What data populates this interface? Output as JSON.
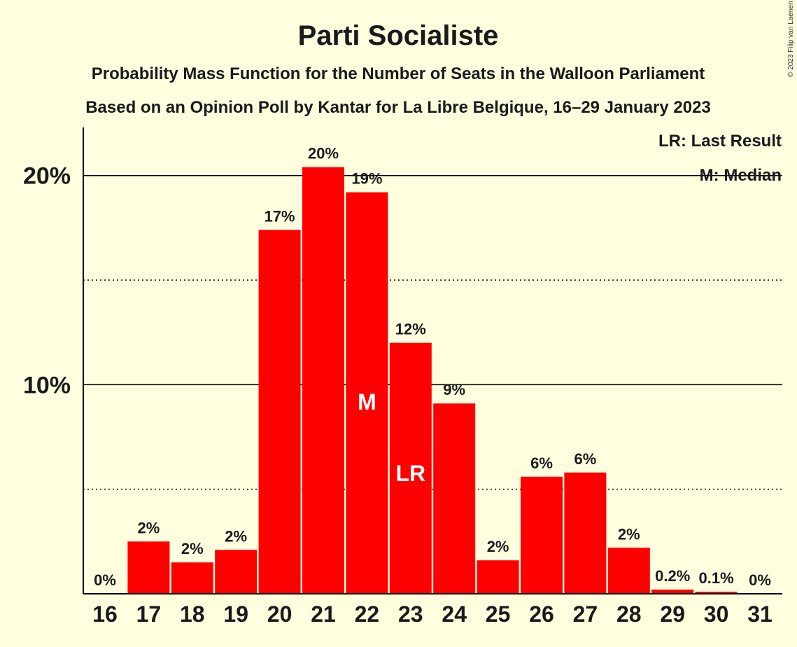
{
  "chart_data": {
    "type": "bar",
    "title": "Parti Socialiste",
    "subtitle_1": "Probability Mass Function for the Number of Seats in the Walloon Parliament",
    "subtitle_2": "Based on an Opinion Poll by Kantar for La Libre Belgique, 16–29 January 2023",
    "categories": [
      "16",
      "17",
      "18",
      "19",
      "20",
      "21",
      "22",
      "23",
      "24",
      "25",
      "26",
      "27",
      "28",
      "29",
      "30",
      "31"
    ],
    "values": [
      0,
      2.5,
      1.5,
      2.1,
      17.4,
      20.4,
      19.2,
      12.0,
      9.1,
      1.6,
      5.6,
      5.8,
      2.2,
      0.2,
      0.1,
      0
    ],
    "data_labels": [
      "0%",
      "2%",
      "2%",
      "2%",
      "17%",
      "20%",
      "19%",
      "12%",
      "9%",
      "2%",
      "6%",
      "6%",
      "2%",
      "0.2%",
      "0.1%",
      "0%"
    ],
    "ylim": [
      0,
      22.3
    ],
    "yticks": [
      {
        "value": 10,
        "label": "10%"
      },
      {
        "value": 20,
        "label": "20%"
      }
    ],
    "minor_gridlines": [
      5,
      15
    ],
    "median_seat": "22",
    "median_marker": "M",
    "last_result_seat": "23",
    "last_result_marker": "LR",
    "legend": [
      "LR: Last Result",
      "M: Median"
    ],
    "legend_position": "top-right",
    "bar_color": "#ff0000",
    "background_color": "#ffffe0"
  },
  "copyright": "© 2023 Filip van Laenen"
}
